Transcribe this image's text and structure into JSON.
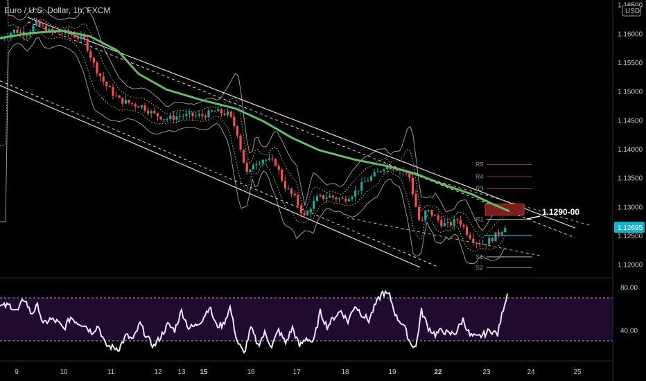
{
  "header": {
    "title": "Euro / U.S. Dollar, 1h, FXCM"
  },
  "colors": {
    "bull": "#26a69a",
    "bear": "#ef5350",
    "ma": "#66bb6a",
    "bands": "#9a9a9a",
    "channel": "#e0e0e0",
    "dotted": "#c8c84a",
    "rsi": "#f4e6ff",
    "rsi_zone": "#1e0b2e",
    "price_badge": "#1ab0c9",
    "resistance_box": "#7a1e1e"
  },
  "price_axis": {
    "currency": "USD",
    "current_price": "1.12695"
  },
  "annotation": {
    "label": "1.1290-00"
  },
  "chart_data": [
    {
      "type": "candlestick",
      "title": "Euro / U.S. Dollar, 1h, FXCM",
      "ylim": [
        1.1178,
        1.1658
      ],
      "y_ticks": [
        "1.16500",
        "1.16000",
        "1.15500",
        "1.15000",
        "1.14500",
        "1.14000",
        "1.13500",
        "1.13000",
        "1.12500",
        "1.12000"
      ],
      "y_tick_values": [
        1.165,
        1.16,
        1.155,
        1.15,
        1.145,
        1.14,
        1.135,
        1.13,
        1.125,
        1.12
      ],
      "x_ticks": [
        "9",
        "10",
        "11",
        "12",
        "13",
        "15",
        "16",
        "17",
        "18",
        "19",
        "22",
        "23",
        "24",
        "25"
      ],
      "bold_x_ticks": [
        "15",
        "22"
      ],
      "price_path": [
        [
          0,
          1.159
        ],
        [
          20,
          1.1605
        ],
        [
          38,
          1.16
        ],
        [
          52,
          1.1617
        ],
        [
          72,
          1.1603
        ],
        [
          100,
          1.16
        ],
        [
          122,
          1.1588
        ],
        [
          136,
          1.1545
        ],
        [
          150,
          1.1515
        ],
        [
          160,
          1.15
        ],
        [
          172,
          1.1485
        ],
        [
          190,
          1.1478
        ],
        [
          205,
          1.1474
        ],
        [
          222,
          1.146
        ],
        [
          240,
          1.1452
        ],
        [
          262,
          1.1458
        ],
        [
          290,
          1.1457
        ],
        [
          310,
          1.1465
        ],
        [
          330,
          1.146
        ],
        [
          342,
          1.143
        ],
        [
          350,
          1.1385
        ],
        [
          358,
          1.135
        ],
        [
          365,
          1.1375
        ],
        [
          380,
          1.1383
        ],
        [
          398,
          1.1375
        ],
        [
          410,
          1.1337
        ],
        [
          425,
          1.1315
        ],
        [
          440,
          1.128
        ],
        [
          448,
          1.13
        ],
        [
          458,
          1.1315
        ],
        [
          475,
          1.1318
        ],
        [
          495,
          1.1312
        ],
        [
          512,
          1.1325
        ],
        [
          528,
          1.1345
        ],
        [
          544,
          1.1358
        ],
        [
          556,
          1.1372
        ],
        [
          566,
          1.1368
        ],
        [
          578,
          1.1365
        ],
        [
          590,
          1.1355
        ],
        [
          598,
          1.131
        ],
        [
          607,
          1.1265
        ],
        [
          615,
          1.1295
        ],
        [
          625,
          1.1285
        ],
        [
          638,
          1.127
        ],
        [
          648,
          1.1268
        ],
        [
          660,
          1.1278
        ],
        [
          666,
          1.127
        ],
        [
          674,
          1.1255
        ],
        [
          685,
          1.124
        ],
        [
          698,
          1.1236
        ],
        [
          710,
          1.1245
        ],
        [
          720,
          1.1255
        ],
        [
          726,
          1.1262
        ],
        [
          730,
          1.127
        ]
      ],
      "overlays": {
        "moving_average": [
          [
            0,
            1.1592
          ],
          [
            40,
            1.16
          ],
          [
            90,
            1.1605
          ],
          [
            130,
            1.1595
          ],
          [
            170,
            1.157
          ],
          [
            200,
            1.153
          ],
          [
            240,
            1.1503
          ],
          [
            290,
            1.1485
          ],
          [
            340,
            1.147
          ],
          [
            380,
            1.1448
          ],
          [
            420,
            1.142
          ],
          [
            460,
            1.1398
          ],
          [
            510,
            1.1382
          ],
          [
            560,
            1.137
          ],
          [
            600,
            1.1357
          ],
          [
            640,
            1.1338
          ],
          [
            680,
            1.1322
          ],
          [
            710,
            1.1305
          ],
          [
            735,
            1.1292
          ]
        ],
        "upper_channel": [
          [
            40,
            1.1628
          ],
          [
            830,
            1.1263
          ]
        ],
        "upper_channel_dashed": [
          [
            40,
            1.162
          ],
          [
            830,
            1.1246
          ]
        ],
        "lower_channel": [
          [
            0,
            1.151
          ],
          [
            606,
            1.1195
          ]
        ],
        "lower_channel_dashed": [
          [
            0,
            1.1518
          ],
          [
            633,
            1.1195
          ]
        ],
        "wedge_upper": [
          [
            585,
            1.136
          ],
          [
            850,
            1.1268
          ]
        ],
        "wedge_lower": [
          [
            500,
            1.1281
          ],
          [
            780,
            1.1215
          ]
        ],
        "resistance_zone": [
          1.129,
          1.13
        ]
      },
      "pivots": [
        {
          "label": "R5",
          "value": 1.1373
        },
        {
          "label": "R4",
          "value": 1.1352
        },
        {
          "label": "R3",
          "value": 1.1331
        },
        {
          "label": "R1",
          "value": 1.1278
        },
        {
          "label": "S1",
          "value": 1.1213
        },
        {
          "label": "S2",
          "value": 1.1194
        }
      ]
    },
    {
      "type": "line",
      "title": "",
      "ylim": [
        12,
        88
      ],
      "y_ticks": [
        "80.00",
        "40.00"
      ],
      "y_tick_values": [
        80,
        40
      ],
      "zone": [
        30,
        70
      ],
      "x": [
        0,
        15,
        25,
        35,
        45,
        55,
        62,
        72,
        82,
        92,
        102,
        112,
        122,
        132,
        142,
        152,
        162,
        172,
        182,
        192,
        202,
        212,
        222,
        232,
        242,
        252,
        262,
        272,
        282,
        292,
        302,
        312,
        322,
        332,
        342,
        352,
        362,
        372,
        382,
        392,
        402,
        412,
        422,
        432,
        442,
        452,
        462,
        472,
        482,
        492,
        502,
        512,
        522,
        532,
        542,
        552,
        562,
        572,
        582,
        592,
        600,
        608,
        618,
        628,
        638,
        648,
        658,
        668,
        678,
        688,
        698,
        708,
        718,
        726,
        732
      ],
      "values": [
        62,
        63,
        57,
        70,
        55,
        63,
        45,
        50,
        48,
        41,
        52,
        47,
        45,
        38,
        44,
        26,
        24,
        23,
        35,
        31,
        46,
        33,
        25,
        34,
        45,
        40,
        58,
        42,
        44,
        50,
        62,
        44,
        45,
        61,
        30,
        18,
        42,
        26,
        37,
        25,
        40,
        28,
        42,
        25,
        33,
        28,
        57,
        43,
        52,
        58,
        48,
        63,
        55,
        49,
        64,
        75,
        72,
        52,
        45,
        28,
        24,
        58,
        42,
        36,
        40,
        36,
        38,
        50,
        35,
        33,
        36,
        40,
        36,
        60,
        74
      ]
    }
  ]
}
